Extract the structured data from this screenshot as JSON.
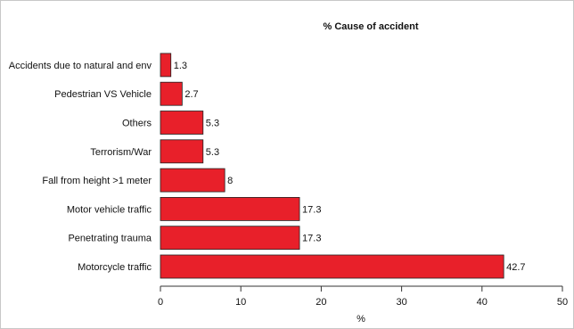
{
  "chart_data": {
    "type": "bar",
    "orientation": "horizontal",
    "title": "% Cause of accident",
    "xlabel": "%",
    "ylabel": "",
    "xlim": [
      0,
      50
    ],
    "x_ticks": [
      0,
      10,
      20,
      30,
      40,
      50
    ],
    "grid": false,
    "bar_color": "#e8202a",
    "categories": [
      "Motorcycle traffic",
      "Penetrating trauma",
      "Motor vehicle traffic",
      "Fall from height >1 meter",
      "Terrorism/War",
      "Others",
      "Pedestrian VS Vehicle",
      "Accidents due to natural and env"
    ],
    "values": [
      42.7,
      17.3,
      17.3,
      8,
      5.3,
      5.3,
      2.7,
      1.3
    ],
    "value_labels": [
      "42.7",
      "17.3",
      "17.3",
      "8",
      "5.3",
      "5.3",
      "2.7",
      "1.3"
    ]
  }
}
